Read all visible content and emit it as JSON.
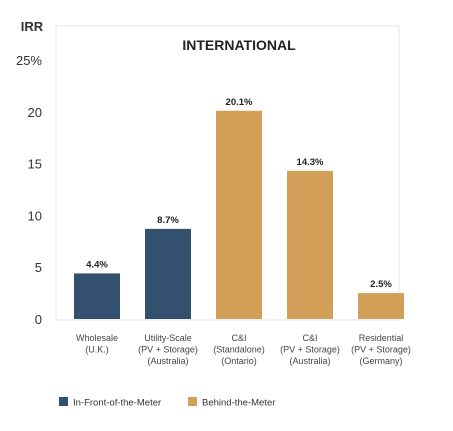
{
  "chart_data": {
    "type": "bar",
    "title": "INTERNATIONAL",
    "ylabel": "IRR",
    "xlabel": "",
    "ylim": [
      0,
      25
    ],
    "yticks": [
      {
        "value": 0,
        "label": "0"
      },
      {
        "value": 5,
        "label": "5"
      },
      {
        "value": 10,
        "label": "10"
      },
      {
        "value": 15,
        "label": "15"
      },
      {
        "value": 20,
        "label": "20"
      },
      {
        "value": 25,
        "label": "25%"
      }
    ],
    "grid": false,
    "legend_position": "bottom-left",
    "categories": [
      [
        "Wholesale",
        "(U.K.)"
      ],
      [
        "Utility-Scale",
        "(PV + Storage)",
        "(Australia)"
      ],
      [
        "C&I",
        "(Standalone)",
        "(Ontario)"
      ],
      [
        "C&I",
        "(PV + Storage)",
        "(Australia)"
      ],
      [
        "Residential",
        "(PV + Storage)",
        "(Germany)"
      ]
    ],
    "values": [
      4.4,
      8.7,
      20.1,
      14.3,
      2.5
    ],
    "data_labels": [
      "4.4%",
      "8.7%",
      "20.1%",
      "14.3%",
      "2.5%"
    ],
    "bar_groups": [
      0,
      0,
      1,
      1,
      1
    ],
    "legend": [
      {
        "name": "In-Front-of-the-Meter",
        "color": "#34506f"
      },
      {
        "name": "Behind-the-Meter",
        "color": "#d19f57"
      }
    ]
  }
}
